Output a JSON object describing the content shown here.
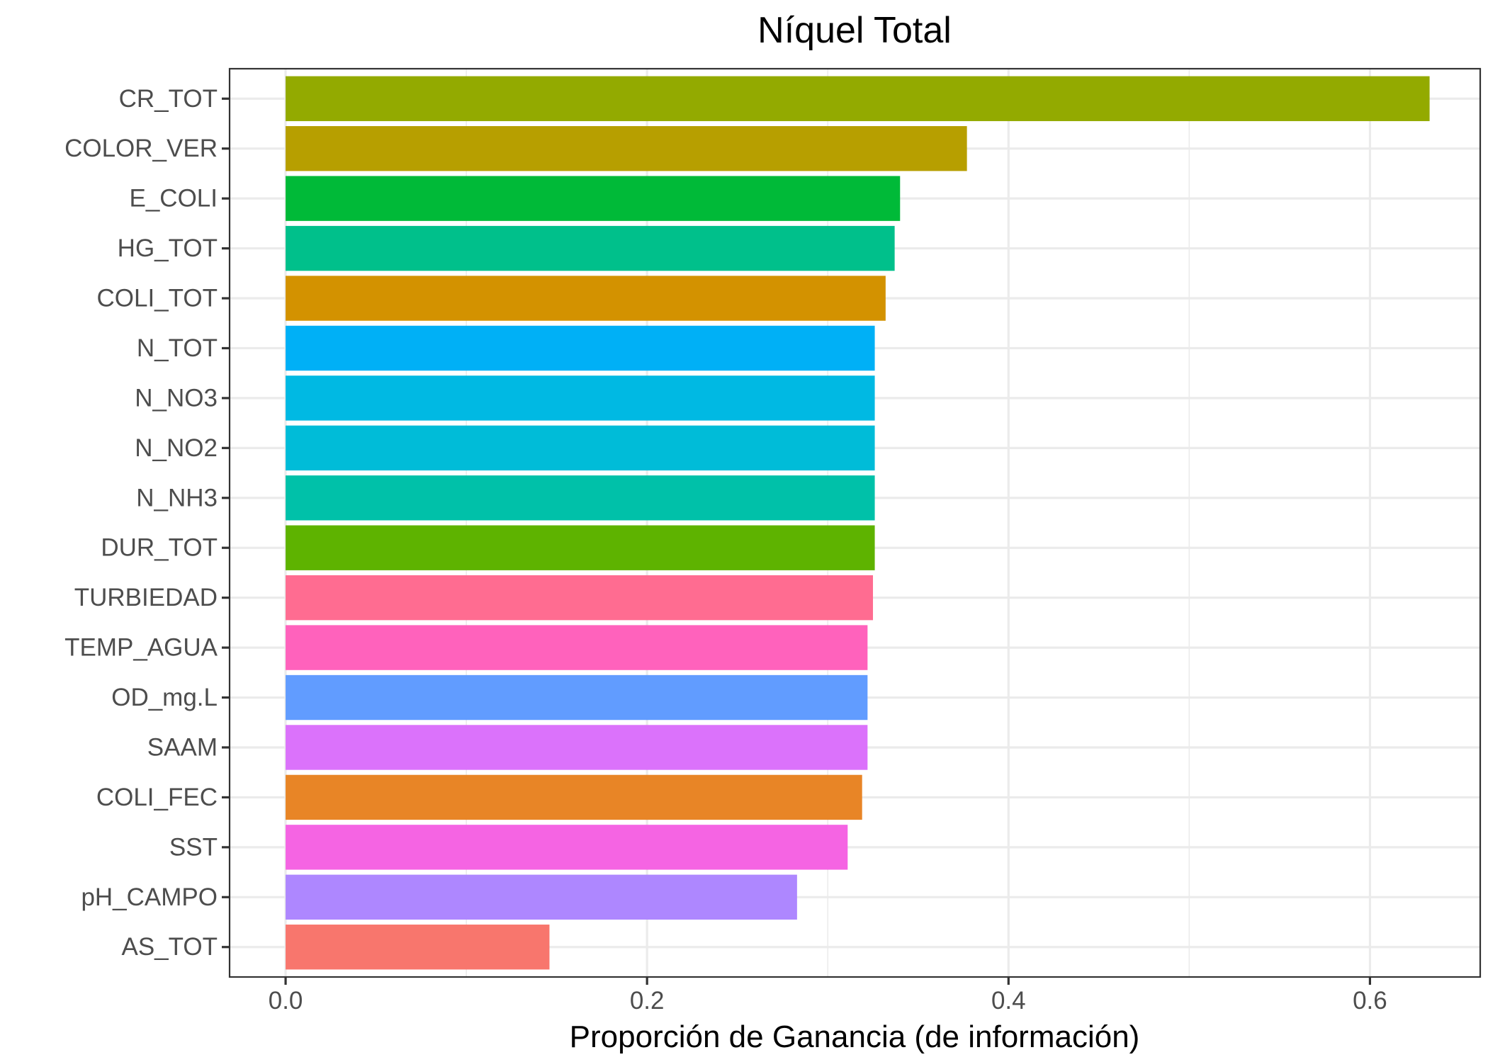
{
  "chart_data": {
    "type": "bar",
    "orientation": "horizontal",
    "title": "Níquel Total",
    "xlabel": "Proporción de Ganancia (de información)",
    "ylabel": "",
    "xlim": [
      -0.031,
      0.661
    ],
    "x_ticks": [
      0.0,
      0.2,
      0.4,
      0.6
    ],
    "x_tick_labels": [
      "0.0",
      "0.2",
      "0.4",
      "0.6"
    ],
    "grid": true,
    "legend": "none",
    "categories": [
      "CR_TOT",
      "COLOR_VER",
      "E_COLI",
      "HG_TOT",
      "COLI_TOT",
      "N_TOT",
      "N_NO3",
      "N_NO2",
      "N_NH3",
      "DUR_TOT",
      "TURBIEDAD",
      "TEMP_AGUA",
      "OD_mg.L",
      "SAAM",
      "COLI_FEC",
      "SST",
      "pH_CAMPO",
      "AS_TOT"
    ],
    "values": [
      0.633,
      0.377,
      0.34,
      0.337,
      0.332,
      0.326,
      0.326,
      0.326,
      0.326,
      0.326,
      0.325,
      0.322,
      0.322,
      0.322,
      0.319,
      0.311,
      0.283,
      0.146
    ],
    "colors": [
      "#93AA00",
      "#B79F00",
      "#00BA38",
      "#00C08B",
      "#D39200",
      "#00B0F6",
      "#00B9E3",
      "#00BCD8",
      "#00C1A9",
      "#5EB300",
      "#FF6C91",
      "#FF62BC",
      "#619CFF",
      "#DB72FB",
      "#E88526",
      "#F564E3",
      "#AE87FF",
      "#F8766D"
    ]
  }
}
